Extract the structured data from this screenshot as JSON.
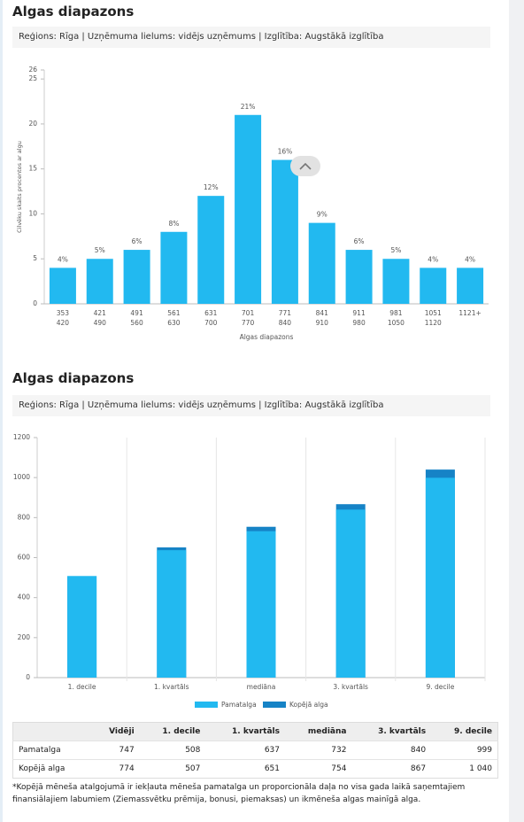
{
  "sections": [
    {
      "title": "Algas diapazons",
      "filters": "Reģions: Rīga | Uzņēmuma lielums: vidējs uzņēmums | Izglītība: Augstākā izglītība"
    },
    {
      "title": "Algas diapazons",
      "filters": "Reģions: Rīga | Uzņēmuma lielums: vidējs uzņēmums | Izglītība: Augstākā izglītība"
    }
  ],
  "chart_data": [
    {
      "type": "bar",
      "y_label": "Cilvēku skaits procentos ar algu",
      "x_label": "Algas diapazons",
      "categories": [
        [
          "353",
          "420"
        ],
        [
          "421",
          "490"
        ],
        [
          "491",
          "560"
        ],
        [
          "561",
          "630"
        ],
        [
          "631",
          "700"
        ],
        [
          "701",
          "770"
        ],
        [
          "771",
          "840"
        ],
        [
          "841",
          "910"
        ],
        [
          "911",
          "980"
        ],
        [
          "981",
          "1050"
        ],
        [
          "1051",
          "1120"
        ],
        [
          "1121+"
        ]
      ],
      "values": [
        4,
        5,
        6,
        8,
        12,
        21,
        16,
        9,
        6,
        5,
        4,
        4
      ],
      "value_labels": [
        "4%",
        "5%",
        "6%",
        "8%",
        "12%",
        "21%",
        "16%",
        "9%",
        "6%",
        "5%",
        "4%",
        "4%"
      ],
      "color": "#22b9f0",
      "ylim": [
        0,
        26
      ],
      "yticks": [
        0,
        5,
        10,
        15,
        20,
        25,
        26
      ],
      "grid": false
    },
    {
      "type": "bar",
      "bar_mode": "overlap",
      "categories": [
        "1. decile",
        "1. kvartāls",
        "mediāna",
        "3. kvartāls",
        "9. decile"
      ],
      "series": [
        {
          "name": "Kopējā alga",
          "color": "#1683c6",
          "values": [
            507,
            651,
            754,
            867,
            1040
          ]
        },
        {
          "name": "Pamatalga",
          "color": "#22b9f0",
          "values": [
            508,
            637,
            732,
            840,
            999
          ]
        }
      ],
      "ylim": [
        0,
        1200
      ],
      "yticks": [
        0,
        200,
        400,
        600,
        800,
        1000,
        1200
      ],
      "grid": true,
      "legend": "bottom"
    }
  ],
  "table": {
    "header": [
      "Vidēji",
      "1. decile",
      "1. kvartāls",
      "mediāna",
      "3. kvartāls",
      "9. decile"
    ],
    "rows": [
      {
        "label": "Pamatalga",
        "cells": [
          "747",
          "508",
          "637",
          "732",
          "840",
          "999"
        ]
      },
      {
        "label": "Kopējā alga",
        "cells": [
          "774",
          "507",
          "651",
          "754",
          "867",
          "1 040"
        ]
      }
    ]
  },
  "footnote": "*Kopējā mēneša atalgojumā ir iekļauta mēneša pamatalga un proporcionāla daļa no visa gada laikā saņemtajiem finansiālajiem labumiem (Ziemassvētku prēmija, bonusi, piemaksas) un ikmēneša algas mainīgā alga."
}
